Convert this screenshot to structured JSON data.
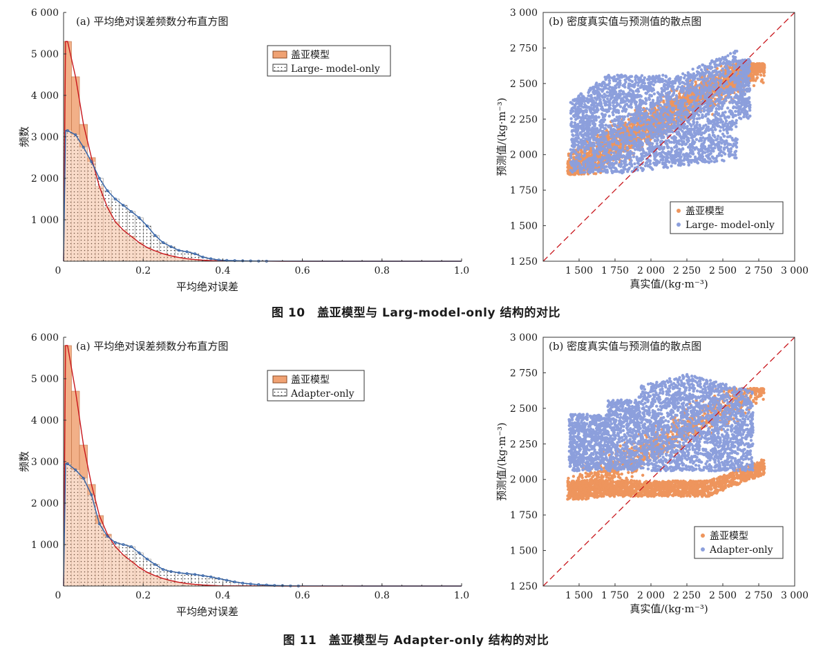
{
  "figures": [
    {
      "caption": "图 10　盖亚模型与 Larg-model-only 结构的对比",
      "colors": {
        "orange": "#EE955D",
        "orange_bar": "#F0A273",
        "red_line": "#C8151B",
        "blue": "#8C9FDC",
        "blue_line": "#2F5FA5",
        "diag": "#C8151B"
      }
    },
    {
      "caption": "图 11　盖亚模型与 Adapter-only 结构的对比",
      "colors": {
        "orange": "#EE955D",
        "orange_bar": "#F0A273",
        "red_line": "#C8151B",
        "blue": "#8C9FDC",
        "blue_line": "#2F5FA5",
        "diag": "#C8151B"
      }
    }
  ],
  "chart_data": [
    {
      "type": "bar",
      "title": "(a) 平均绝对误差频数分布直方图",
      "xlabel": "平均绝对误差",
      "ylabel": "频数",
      "xlim": [
        0,
        1.0
      ],
      "ylim": [
        0,
        6000
      ],
      "xticks": [
        "0",
        "0.2",
        "0.4",
        "0.6",
        "0.8",
        "1.0"
      ],
      "yticks": [
        "",
        "1 000",
        "2 000",
        "3 000",
        "4 000",
        "5 000",
        "6 000"
      ],
      "bin_width": 0.02,
      "legend_position": "top-center",
      "series": [
        {
          "name": "盖亚模型",
          "style": "solid",
          "values": [
            5300,
            4450,
            3300,
            2500,
            1800,
            1300,
            950,
            750,
            600,
            450,
            330,
            250,
            180,
            130,
            90,
            60,
            40,
            25,
            15,
            8
          ]
        },
        {
          "name": "Large- model-only",
          "style": "dotted",
          "values": [
            3150,
            3050,
            2750,
            2400,
            2000,
            1700,
            1500,
            1350,
            1200,
            1050,
            850,
            620,
            450,
            350,
            260,
            230,
            180,
            100,
            60,
            30,
            20,
            15,
            10,
            8,
            5,
            3
          ]
        }
      ]
    },
    {
      "type": "scatter",
      "title": "(b) 密度真实值与预测值的散点图",
      "xlabel": "真实值/(kg·m⁻³)",
      "ylabel": "预测值/(kg·m⁻³)",
      "xlim": [
        1250,
        3000
      ],
      "ylim": [
        1250,
        3000
      ],
      "xticks": [
        "1 500",
        "1 750",
        "2 000",
        "2 250",
        "2 500",
        "2 750",
        "3 000"
      ],
      "yticks": [
        "1 250",
        "1 500",
        "1 750",
        "2 000",
        "2 250",
        "2 500",
        "2 750",
        "3 000"
      ],
      "legend_position": "bottom-right",
      "series": [
        {
          "name": "盖亚模型",
          "color_key": "orange"
        },
        {
          "name": "Large- model-only",
          "color_key": "blue"
        }
      ]
    },
    {
      "type": "bar",
      "title": "(a) 平均绝对误差频数分布直方图",
      "xlabel": "平均绝对误差",
      "ylabel": "频数",
      "xlim": [
        0,
        1.0
      ],
      "ylim": [
        0,
        6000
      ],
      "xticks": [
        "0",
        "0.2",
        "0.4",
        "0.6",
        "0.8",
        "1.0"
      ],
      "yticks": [
        "",
        "1 000",
        "2 000",
        "3 000",
        "4 000",
        "5 000",
        "6 000"
      ],
      "bin_width": 0.02,
      "legend_position": "top-center",
      "series": [
        {
          "name": "盖亚模型",
          "style": "solid",
          "values": [
            5800,
            4700,
            3400,
            2450,
            1700,
            1250,
            950,
            750,
            600,
            450,
            330,
            250,
            180,
            130,
            90,
            60,
            40,
            25,
            15,
            8
          ]
        },
        {
          "name": "Adapter-only",
          "style": "dotted",
          "values": [
            2950,
            2800,
            2600,
            2200,
            1500,
            1200,
            1050,
            1000,
            950,
            800,
            650,
            520,
            400,
            350,
            320,
            300,
            280,
            250,
            220,
            180,
            140,
            100,
            70,
            50,
            35,
            25,
            15,
            10,
            5,
            3
          ]
        }
      ]
    },
    {
      "type": "scatter",
      "title": "(b) 密度真实值与预测值的散点图",
      "xlabel": "真实值/(kg·m⁻³)",
      "ylabel": "预测值/(kg·m⁻³)",
      "xlim": [
        1250,
        3000
      ],
      "ylim": [
        1250,
        3000
      ],
      "xticks": [
        "1 500",
        "1 750",
        "2 000",
        "2 250",
        "2 500",
        "2 750",
        "3 000"
      ],
      "yticks": [
        "1 250",
        "1 500",
        "1 750",
        "2 000",
        "2 250",
        "2 500",
        "2 750",
        "3 000"
      ],
      "legend_position": "bottom-right",
      "series": [
        {
          "name": "盖亚模型",
          "color_key": "orange"
        },
        {
          "name": "Adapter-only",
          "color_key": "blue"
        }
      ]
    }
  ]
}
